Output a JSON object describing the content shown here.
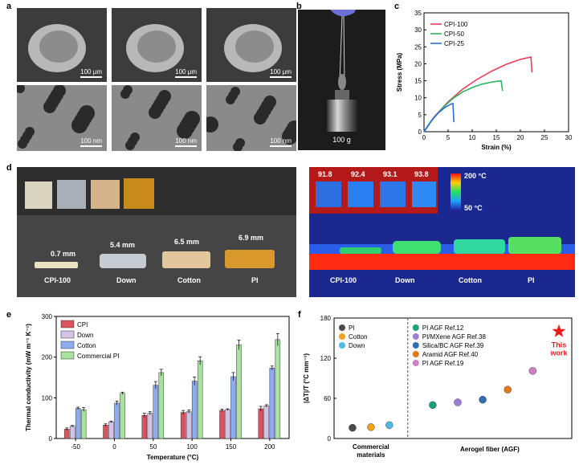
{
  "panels": {
    "a": "a",
    "b": "b",
    "c": "c",
    "d": "d",
    "e": "e",
    "f": "f"
  },
  "panel_a": {
    "scale_top": "100 μm",
    "scale_bottom": "100 nm"
  },
  "panel_b": {
    "weight_label": "100 g"
  },
  "panel_d": {
    "thicknesses": [
      "0.7 mm",
      "5.4 mm",
      "6.5 mm",
      "6.9 mm"
    ],
    "sample_names": [
      "CPI-100",
      "Down",
      "Cotton",
      "PI"
    ],
    "thermal_readings": [
      "91.8",
      "92.4",
      "93.1",
      "93.8"
    ],
    "colorbar_max": "200 °C",
    "colorbar_min": "50 °C",
    "colors": {
      "hot": "#ff2a12",
      "cold": "#1b2890"
    }
  },
  "chart_data": [
    {
      "type": "line",
      "panel": "c",
      "xlabel": "Strain (%)",
      "ylabel": "Stress (MPa)",
      "xlim": [
        0,
        30
      ],
      "ylim": [
        0,
        35
      ],
      "xticks": [
        0,
        5,
        10,
        15,
        20,
        25,
        30
      ],
      "yticks": [
        0,
        5,
        10,
        15,
        20,
        25,
        30,
        35
      ],
      "legend_position": "top-left",
      "series": [
        {
          "name": "CPI-100",
          "color": "#e8405a",
          "x": [
            0,
            2,
            5,
            8,
            11,
            14,
            17,
            20,
            22.2,
            22.4
          ],
          "y": [
            0,
            4.2,
            8.8,
            12.5,
            15.4,
            17.8,
            19.8,
            21.3,
            22.0,
            17.5
          ]
        },
        {
          "name": "CPI-50",
          "color": "#2cb55e",
          "x": [
            0,
            2,
            4,
            6,
            8,
            10,
            12,
            14,
            16,
            16.3
          ],
          "y": [
            0,
            4.0,
            7.2,
            9.8,
            11.7,
            13.0,
            14.0,
            14.6,
            15.0,
            12.0
          ]
        },
        {
          "name": "CPI-25",
          "color": "#2a6fd6",
          "x": [
            0,
            1.5,
            3,
            4.5,
            5.7,
            6.0,
            6.2
          ],
          "y": [
            0,
            3.2,
            5.6,
            7.3,
            8.2,
            8.3,
            2.8
          ]
        }
      ]
    },
    {
      "type": "bar",
      "panel": "e",
      "xlabel": "Temperature (°C)",
      "ylabel": "Thermal conductivity (mW m⁻¹ K⁻¹)",
      "ylim": [
        0,
        300
      ],
      "yticks": [
        0,
        100,
        200,
        300
      ],
      "categories": [
        "-50",
        "0",
        "50",
        "100",
        "150",
        "200"
      ],
      "legend_position": "top-left",
      "series": [
        {
          "name": "CPI",
          "color": "#d9545f",
          "values": [
            23,
            33,
            57,
            64,
            69,
            73
          ],
          "errors": [
            3,
            3,
            5,
            5,
            3,
            6
          ]
        },
        {
          "name": "Down",
          "color": "#d5c2e4",
          "values": [
            30,
            41,
            62,
            66,
            71,
            80
          ],
          "errors": [
            2,
            2,
            4,
            4,
            2,
            3
          ]
        },
        {
          "name": "Cotton",
          "color": "#8eacf2",
          "values": [
            74,
            87,
            131,
            141,
            152,
            173
          ],
          "errors": [
            3,
            5,
            9,
            10,
            10,
            5
          ]
        },
        {
          "name": "Commercial PI",
          "color": "#a7e29e",
          "values": [
            71,
            111,
            162,
            191,
            230,
            243
          ],
          "errors": [
            5,
            3,
            8,
            10,
            12,
            15
          ]
        }
      ]
    },
    {
      "type": "scatter",
      "panel": "f",
      "ylabel": "|ΔT|/T (°C mm⁻¹)",
      "ylim": [
        0,
        180
      ],
      "yticks": [
        0,
        60,
        120,
        180
      ],
      "group_labels": [
        "Commercial materials",
        "Aerogel fiber (AGF)"
      ],
      "legend_position": "top-left",
      "points": [
        {
          "name": "PI",
          "color": "#4a4a4a",
          "group": 0,
          "x": 1,
          "y": 16
        },
        {
          "name": "Cotton",
          "color": "#f2a31c",
          "group": 0,
          "x": 2,
          "y": 17
        },
        {
          "name": "Down",
          "color": "#4fb8e6",
          "group": 0,
          "x": 3,
          "y": 20
        },
        {
          "name": "PI AGF Ref.12",
          "color": "#1fa07c",
          "group": 1,
          "x": 1,
          "y": 50
        },
        {
          "name": "PI/MXene AGF Ref.38",
          "color": "#9b7fd6",
          "group": 1,
          "x": 2,
          "y": 54
        },
        {
          "name": "Silica/BC AGF Ref.39",
          "color": "#2f6fb6",
          "group": 1,
          "x": 3,
          "y": 58
        },
        {
          "name": "Aramid AGF Ref.40",
          "color": "#e07a1a",
          "group": 1,
          "x": 4,
          "y": 73
        },
        {
          "name": "PI AGF Ref.19",
          "color": "#cf7fc2",
          "group": 1,
          "x": 5,
          "y": 101
        }
      ],
      "highlight": {
        "name": "This work",
        "color": "#e81c1c",
        "y": 160
      }
    }
  ]
}
